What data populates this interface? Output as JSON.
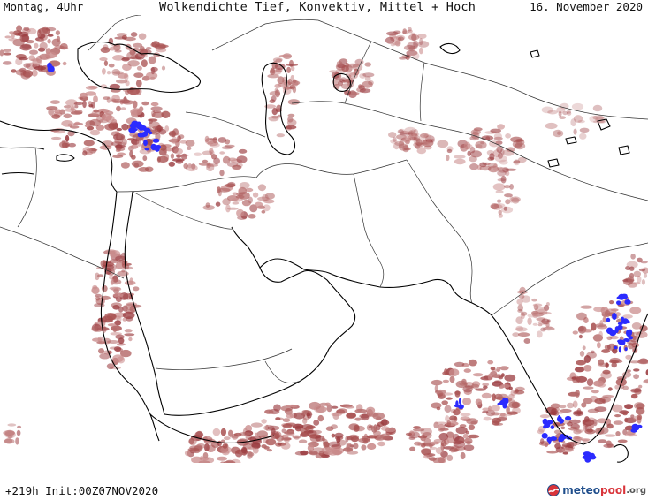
{
  "header": {
    "left": "Montag, 4Uhr",
    "title": "Wolkendichte  Tief, Konvektiv, Mittel + Hoch",
    "date": "16. November 2020"
  },
  "footer": {
    "run_info": "+219h Init:00Z07NOV2020",
    "logo_part1": "meteo",
    "logo_part2": "pool",
    "logo_part3": ".org",
    "logo_icon": "meteopool-logo-icon"
  },
  "colors": {
    "cloud_dense": "#9b3c40",
    "cloud_light": "#c98a8a",
    "convective_core": "#2b2bff",
    "coastline": "#000000",
    "border": "#333333",
    "background": "#ffffff"
  }
}
